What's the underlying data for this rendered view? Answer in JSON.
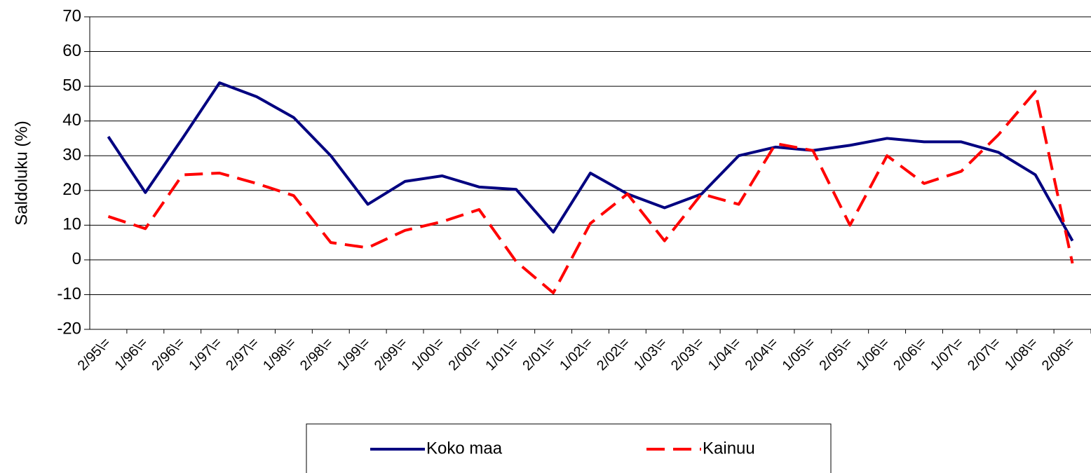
{
  "chart_data": {
    "type": "line",
    "y_label": "Saldoluku (%)",
    "categories": [
      "2/95\\=",
      "1/96\\=",
      "2/96\\=",
      "1/97\\=",
      "2/97\\=",
      "1/98\\=",
      "2/98\\=",
      "1/99\\=",
      "2/99\\=",
      "1/00\\=",
      "2/00\\=",
      "1/01\\=",
      "2/01\\=",
      "1/02\\=",
      "2/02\\=",
      "1/03\\=",
      "2/03\\=",
      "1/04\\=",
      "2/04\\=",
      "1/05\\=",
      "2/05\\=",
      "1/06\\=",
      "2/06\\=",
      "1/07\\=",
      "2/07\\=",
      "1/08\\=",
      "2/08\\="
    ],
    "series": [
      {
        "name": "Koko maa",
        "color": "#000080",
        "dash": "solid",
        "values": [
          35.5,
          19.4,
          35,
          51,
          47,
          41,
          30,
          16,
          22.6,
          24.2,
          21,
          20.3,
          8,
          25,
          19,
          15,
          19,
          30,
          32.5,
          31.5,
          33,
          35,
          34,
          34,
          31,
          24.5,
          5.5
        ]
      },
      {
        "name": "Kainuu",
        "color": "#ff0000",
        "dash": "dashed",
        "values": [
          12.5,
          9,
          24.5,
          25,
          22,
          18.5,
          5,
          3.5,
          8.5,
          11,
          14.5,
          -0.5,
          -9.5,
          10.5,
          19,
          5.5,
          19,
          16,
          33.5,
          31.5,
          10,
          30,
          22,
          25.5,
          36,
          48.5,
          -1
        ]
      }
    ],
    "ylim": [
      -20,
      70
    ],
    "yticks": [
      -20,
      -10,
      0,
      10,
      20,
      30,
      40,
      50,
      60,
      70
    ],
    "grid": true,
    "legend": "bottom"
  }
}
